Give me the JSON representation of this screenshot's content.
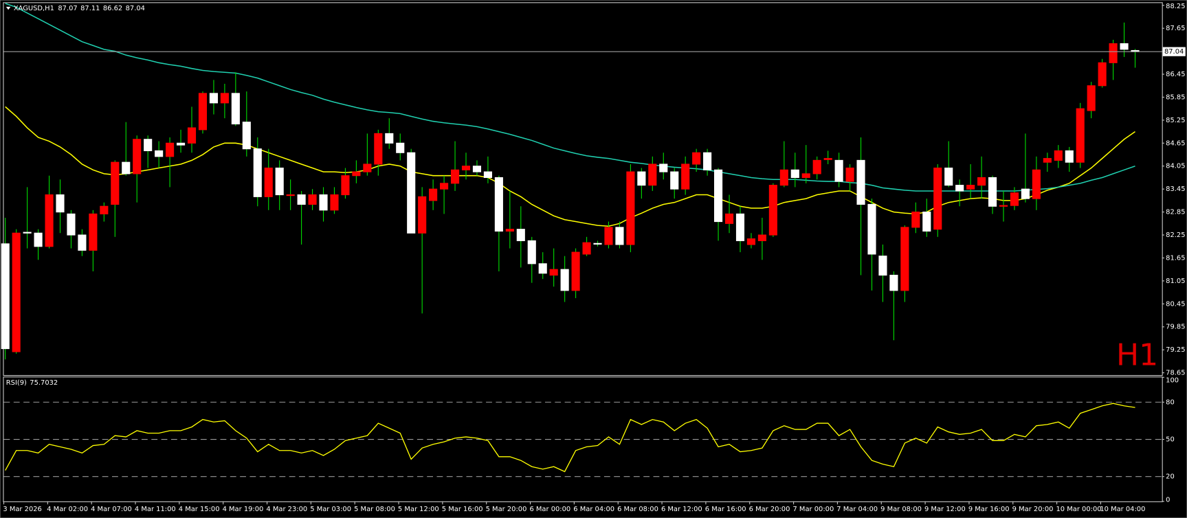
{
  "chart_data": [
    {
      "type": "candlestick",
      "title": "XAGUSD,H1",
      "header_values": [
        87.07,
        87.11,
        86.62,
        87.04
      ],
      "open": [
        82.02,
        79.2,
        82.32,
        82.3,
        81.95,
        83.3,
        82.8,
        82.25,
        81.85,
        82.8,
        83.05,
        84.15,
        83.85,
        84.75,
        84.45,
        84.3,
        84.65,
        84.65,
        85.0,
        85.95,
        85.7,
        85.95,
        85.2,
        84.5,
        83.25,
        84.0,
        83.28,
        83.3,
        83.05,
        83.3,
        82.9,
        83.3,
        83.8,
        83.9,
        84.1,
        84.9,
        84.65,
        84.4,
        82.3,
        83.15,
        83.45,
        83.6,
        83.95,
        84.05,
        83.9,
        83.75,
        82.35,
        82.4,
        82.1,
        81.5,
        81.2,
        81.35,
        80.8,
        81.75,
        82.03,
        82.0,
        82.45,
        82.0,
        83.9,
        83.55,
        84.1,
        83.9,
        83.45,
        84.1,
        84.4,
        83.95,
        82.55,
        82.8,
        82.0,
        82.1,
        82.25,
        83.55,
        83.95,
        83.75,
        83.85,
        84.22,
        84.2,
        83.65,
        84.2,
        83.05,
        81.7,
        81.2,
        80.8,
        82.45,
        82.85,
        82.4,
        84.0,
        83.55,
        83.45,
        83.55,
        83.75,
        83.0,
        83.02,
        83.45,
        83.2,
        84.15,
        84.2,
        84.45,
        84.15,
        85.5,
        86.15,
        86.75,
        87.25,
        87.07
      ],
      "high": [
        82.7,
        82.4,
        83.5,
        82.4,
        83.8,
        83.7,
        82.9,
        82.4,
        82.9,
        83.1,
        84.2,
        85.2,
        84.85,
        84.85,
        84.7,
        84.8,
        85.0,
        85.6,
        86.0,
        86.3,
        86.2,
        86.5,
        86.0,
        84.8,
        84.5,
        84.2,
        83.7,
        83.4,
        83.45,
        83.5,
        83.5,
        84.0,
        84.2,
        84.9,
        85.0,
        85.3,
        84.9,
        84.5,
        83.5,
        83.7,
        83.8,
        84.7,
        84.4,
        84.2,
        84.3,
        83.8,
        83.4,
        83.0,
        82.2,
        81.8,
        81.9,
        81.7,
        81.9,
        82.2,
        82.1,
        82.6,
        82.6,
        84.1,
        84.0,
        84.3,
        84.4,
        84.0,
        84.3,
        84.5,
        84.5,
        84.0,
        83.3,
        83.0,
        82.3,
        82.7,
        83.6,
        84.7,
        84.4,
        84.6,
        84.3,
        84.45,
        84.4,
        84.1,
        84.8,
        83.2,
        82.0,
        81.3,
        82.5,
        83.1,
        83.2,
        84.1,
        84.7,
        83.7,
        84.1,
        84.3,
        83.8,
        83.4,
        83.5,
        84.9,
        84.3,
        84.4,
        84.6,
        84.55,
        85.7,
        86.25,
        86.85,
        87.35,
        87.8,
        87.11
      ],
      "low": [
        79.0,
        79.15,
        81.9,
        81.6,
        81.9,
        82.3,
        81.9,
        81.7,
        81.3,
        82.6,
        82.2,
        83.8,
        83.1,
        84.0,
        84.0,
        83.5,
        84.4,
        84.4,
        84.9,
        85.4,
        85.3,
        85.1,
        84.3,
        83.0,
        82.9,
        82.9,
        82.9,
        82.0,
        82.9,
        82.6,
        82.8,
        83.2,
        83.6,
        83.8,
        83.8,
        84.5,
        84.2,
        82.3,
        80.2,
        82.9,
        82.8,
        83.4,
        83.7,
        83.8,
        83.6,
        81.3,
        81.9,
        81.4,
        81.0,
        81.1,
        80.9,
        80.5,
        80.6,
        81.7,
        81.95,
        81.9,
        81.9,
        81.8,
        83.2,
        83.4,
        83.7,
        83.2,
        83.3,
        83.9,
        83.8,
        82.1,
        82.3,
        81.8,
        81.9,
        81.6,
        82.2,
        83.5,
        83.5,
        83.6,
        83.7,
        84.1,
        83.5,
        83.4,
        81.2,
        80.8,
        80.5,
        79.5,
        80.5,
        82.3,
        82.2,
        82.2,
        83.5,
        83.0,
        83.2,
        83.2,
        82.8,
        82.6,
        82.9,
        83.1,
        82.9,
        83.9,
        84.0,
        83.9,
        84.0,
        85.3,
        86.1,
        86.3,
        86.9,
        86.62
      ],
      "close": [
        79.28,
        82.3,
        82.3,
        81.95,
        83.3,
        82.85,
        82.25,
        81.85,
        82.8,
        83.0,
        84.15,
        83.85,
        84.75,
        84.45,
        84.3,
        84.65,
        84.6,
        85.05,
        85.95,
        85.7,
        85.95,
        85.15,
        84.5,
        83.25,
        84.0,
        83.3,
        83.3,
        83.05,
        83.3,
        82.9,
        83.3,
        83.8,
        83.9,
        84.1,
        84.9,
        84.65,
        84.4,
        82.3,
        83.25,
        83.45,
        83.6,
        83.95,
        84.05,
        83.9,
        83.75,
        82.35,
        82.4,
        82.1,
        81.5,
        81.25,
        81.35,
        80.8,
        81.8,
        82.05,
        82.02,
        82.45,
        82.0,
        83.9,
        83.55,
        84.1,
        83.9,
        83.45,
        84.1,
        84.4,
        83.95,
        82.6,
        82.8,
        82.1,
        82.15,
        82.25,
        83.55,
        83.95,
        83.75,
        83.85,
        84.2,
        84.25,
        83.65,
        84.0,
        83.05,
        81.75,
        81.2,
        80.8,
        82.45,
        82.85,
        82.35,
        84.0,
        83.55,
        83.4,
        83.55,
        83.75,
        83.0,
        83.02,
        83.35,
        83.2,
        83.95,
        84.25,
        84.45,
        84.15,
        85.55,
        86.15,
        86.75,
        87.25,
        87.1,
        87.04
      ],
      "up_color": "#ff0000",
      "down_color": "#ffffff",
      "wick_color": "#00e000",
      "series": [
        {
          "color": "#ffff00",
          "values": [
            85.6,
            85.35,
            85.05,
            84.8,
            84.7,
            84.55,
            84.35,
            84.1,
            83.95,
            83.85,
            83.82,
            83.85,
            83.9,
            83.95,
            84.0,
            84.05,
            84.1,
            84.2,
            84.35,
            84.55,
            84.65,
            84.65,
            84.6,
            84.5,
            84.4,
            84.3,
            84.2,
            84.1,
            84.0,
            83.9,
            83.9,
            83.88,
            83.9,
            83.95,
            84.05,
            84.1,
            84.05,
            83.9,
            83.85,
            83.8,
            83.8,
            83.8,
            83.8,
            83.8,
            83.75,
            83.6,
            83.4,
            83.25,
            83.05,
            82.9,
            82.75,
            82.65,
            82.6,
            82.55,
            82.5,
            82.48,
            82.55,
            82.7,
            82.82,
            82.95,
            83.05,
            83.1,
            83.2,
            83.3,
            83.3,
            83.2,
            83.1,
            83.0,
            82.95,
            82.95,
            83.0,
            83.1,
            83.15,
            83.2,
            83.3,
            83.35,
            83.4,
            83.4,
            83.25,
            83.1,
            82.95,
            82.85,
            82.82,
            82.8,
            82.85,
            83.0,
            83.1,
            83.15,
            83.2,
            83.22,
            83.2,
            83.15,
            83.15,
            83.2,
            83.3,
            83.42,
            83.5,
            83.6,
            83.8,
            84.0,
            84.25,
            84.5,
            84.75,
            84.95
          ]
        },
        {
          "color": "#20d0b0",
          "values": [
            88.3,
            88.2,
            88.05,
            87.9,
            87.75,
            87.6,
            87.45,
            87.3,
            87.2,
            87.1,
            87.05,
            86.95,
            86.88,
            86.82,
            86.75,
            86.7,
            86.66,
            86.6,
            86.55,
            86.52,
            86.5,
            86.48,
            86.42,
            86.35,
            86.25,
            86.15,
            86.05,
            85.97,
            85.9,
            85.8,
            85.72,
            85.65,
            85.58,
            85.52,
            85.47,
            85.45,
            85.42,
            85.35,
            85.28,
            85.22,
            85.18,
            85.15,
            85.12,
            85.08,
            85.02,
            84.95,
            84.88,
            84.8,
            84.72,
            84.62,
            84.52,
            84.45,
            84.38,
            84.32,
            84.28,
            84.25,
            84.2,
            84.15,
            84.12,
            84.08,
            84.05,
            84.02,
            84.0,
            83.98,
            83.95,
            83.9,
            83.85,
            83.8,
            83.75,
            83.72,
            83.7,
            83.7,
            83.7,
            83.68,
            83.66,
            83.65,
            83.65,
            83.62,
            83.6,
            83.55,
            83.48,
            83.45,
            83.42,
            83.4,
            83.4,
            83.4,
            83.4,
            83.4,
            83.4,
            83.4,
            83.4,
            83.4,
            83.4,
            83.42,
            83.44,
            83.46,
            83.5,
            83.55,
            83.6,
            83.68,
            83.75,
            83.85,
            83.95,
            84.05
          ]
        }
      ],
      "ylim": [
        78.59,
        88.31
      ],
      "yticks": [
        88.25,
        87.65,
        87.05,
        86.45,
        85.85,
        85.25,
        84.65,
        84.05,
        83.45,
        82.85,
        82.25,
        81.65,
        81.05,
        80.45,
        79.85,
        79.25,
        78.65
      ],
      "current_price": 87.04,
      "watermark": "H1",
      "watermark_color": "#e00000"
    },
    {
      "type": "line",
      "title": "RSI(9)",
      "title_value": 75.7032,
      "categories": [
        "3 Mar 2026",
        null,
        null,
        null,
        "4 Mar 02:00",
        null,
        null,
        null,
        "4 Mar 07:00",
        null,
        null,
        null,
        "4 Mar 11:00",
        null,
        null,
        null,
        "4 Mar 15:00",
        null,
        null,
        null,
        "4 Mar 19:00",
        null,
        null,
        null,
        "4 Mar 23:00",
        null,
        null,
        null,
        "5 Mar 03:00",
        null,
        null,
        null,
        "5 Mar 08:00",
        null,
        null,
        null,
        "5 Mar 12:00",
        null,
        null,
        null,
        "5 Mar 16:00",
        null,
        null,
        null,
        "5 Mar 20:00",
        null,
        null,
        null,
        "6 Mar 00:00",
        null,
        null,
        null,
        "6 Mar 04:00",
        null,
        null,
        null,
        "6 Mar 08:00",
        null,
        null,
        null,
        "6 Mar 12:00",
        null,
        null,
        null,
        "6 Mar 16:00",
        null,
        null,
        null,
        "6 Mar 20:00",
        null,
        null,
        null,
        "7 Mar 00:00",
        null,
        null,
        null,
        "7 Mar 04:00",
        null,
        null,
        null,
        "9 Mar 08:00",
        null,
        null,
        null,
        "9 Mar 12:00",
        null,
        null,
        null,
        "9 Mar 16:00",
        null,
        null,
        null,
        "9 Mar 20:00",
        null,
        null,
        null,
        "10 Mar 00:00",
        null,
        null,
        null,
        "10 Mar 04:00",
        null,
        null,
        null
      ],
      "series": [
        {
          "color": "#ffff00",
          "values": [
            25,
            41,
            41,
            39,
            46,
            44,
            42,
            39,
            45,
            46,
            53,
            52,
            57,
            55,
            55,
            57,
            57,
            60,
            66,
            64,
            65,
            57,
            51,
            40,
            46,
            41,
            41,
            39,
            41,
            37,
            42,
            49,
            51,
            53,
            63,
            59,
            55,
            34,
            43,
            46,
            48,
            51,
            52,
            51,
            49,
            36,
            36,
            33,
            28,
            26,
            28,
            24,
            41,
            44,
            45,
            52,
            46,
            66,
            62,
            66,
            64,
            57,
            63,
            66,
            59,
            44,
            46,
            40,
            41,
            43,
            57,
            61,
            58,
            58,
            63,
            63,
            53,
            58,
            44,
            33,
            30,
            28,
            47,
            51,
            47,
            60,
            56,
            54,
            55,
            58,
            49,
            49,
            54,
            52,
            61,
            62,
            64,
            59,
            71,
            74,
            77,
            79,
            77,
            75.7032
          ]
        }
      ],
      "ylim": [
        0,
        100
      ],
      "yticks": [
        0,
        20,
        50,
        80,
        100
      ],
      "levels": [
        20,
        50,
        80
      ],
      "level_color": "#9a9a9a"
    }
  ]
}
